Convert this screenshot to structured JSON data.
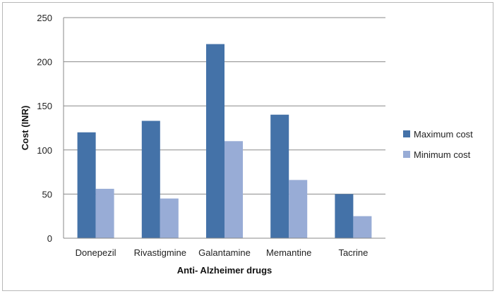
{
  "chart_data": {
    "type": "bar",
    "categories": [
      "Donepezil",
      "Rivastigmine",
      "Galantamine",
      "Memantine",
      "Tacrine"
    ],
    "series": [
      {
        "name": "Maximum cost",
        "values": [
          120,
          133,
          220,
          140,
          50
        ],
        "color": "#4472a8"
      },
      {
        "name": "Minimum cost",
        "values": [
          56,
          45,
          110,
          66,
          25
        ],
        "color": "#98acd6"
      }
    ],
    "xlabel": "Anti- Alzheimer drugs",
    "ylabel": "Cost (INR)",
    "ylim": [
      0,
      250
    ],
    "yticks": [
      0,
      50,
      100,
      150,
      200,
      250
    ],
    "grid": true,
    "legend_position": "right"
  }
}
